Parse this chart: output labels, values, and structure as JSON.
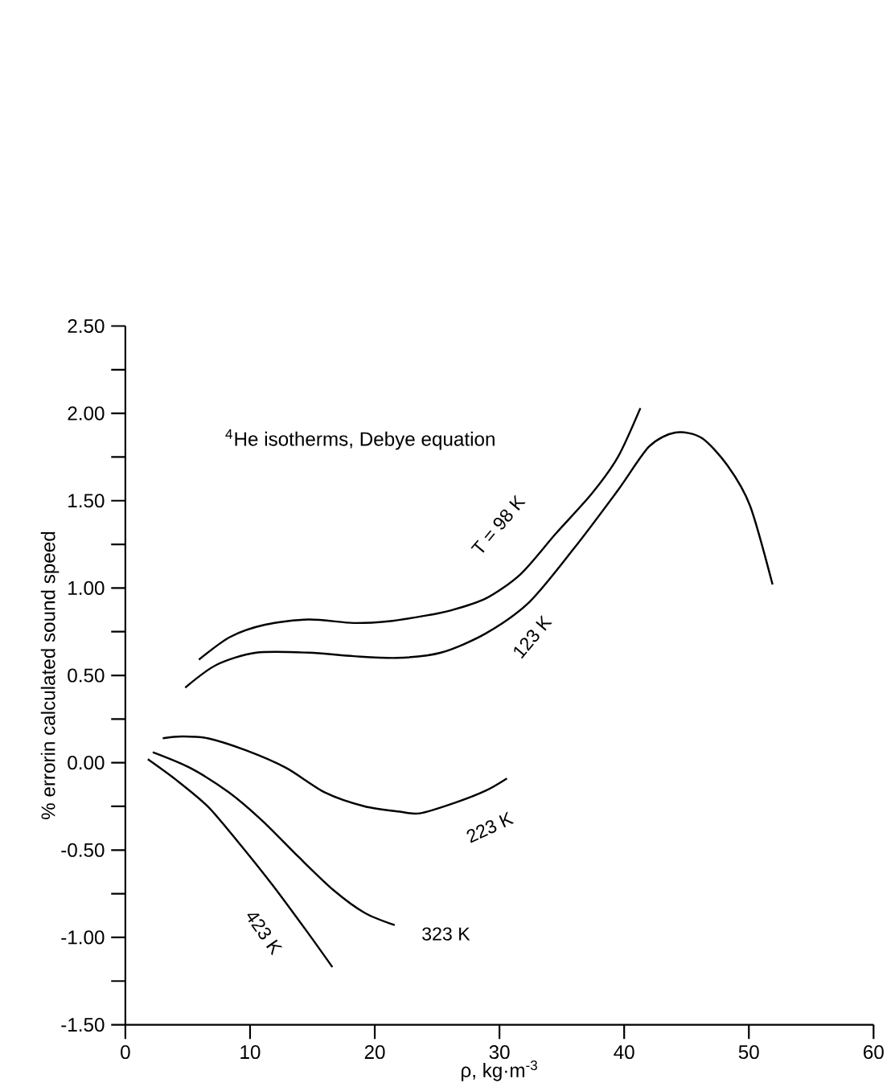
{
  "chart_data": {
    "type": "line",
    "title": "$^{4}$He isotherms, Debye equation",
    "xlabel": "ρ, kg·m$^{-3}$",
    "ylabel": "% errorin calculated sound speed",
    "xlim": [
      0,
      60
    ],
    "ylim": [
      -1.5,
      2.5
    ],
    "xticks": [
      0,
      10,
      20,
      30,
      40,
      50,
      60
    ],
    "yticks": [
      {
        "value": -1.5,
        "label": "-1.50"
      },
      {
        "value": -1.25,
        "label": null
      },
      {
        "value": -1.0,
        "label": "-1.00"
      },
      {
        "value": -0.75,
        "label": null
      },
      {
        "value": -0.5,
        "label": "-0.50"
      },
      {
        "value": -0.25,
        "label": null
      },
      {
        "value": 0,
        "label": "0.00"
      },
      {
        "value": 0.25,
        "label": null
      },
      {
        "value": 0.5,
        "label": "0.50"
      },
      {
        "value": 0.75,
        "label": null
      },
      {
        "value": 1.0,
        "label": "1.00"
      },
      {
        "value": 1.25,
        "label": null
      },
      {
        "value": 1.5,
        "label": "1.50"
      },
      {
        "value": 1.75,
        "label": null
      },
      {
        "value": 2.0,
        "label": "2.00"
      },
      {
        "value": 2.25,
        "label": null
      },
      {
        "value": 2.5,
        "label": "2.50"
      }
    ],
    "grid": false,
    "legend": false,
    "marker": "none",
    "line_style": "solid",
    "series": [
      {
        "name": "T = 98 K",
        "color": "#000000",
        "x": [
          5.9,
          8.4,
          11.2,
          14.7,
          18.3,
          21.1,
          23.9,
          26.0,
          28.9,
          31.7,
          34.5,
          37.4,
          39.5,
          41.3
        ],
        "values": [
          0.59,
          0.72,
          0.79,
          0.82,
          0.8,
          0.81,
          0.84,
          0.87,
          0.94,
          1.08,
          1.31,
          1.54,
          1.75,
          2.03
        ]
      },
      {
        "name": "123 K",
        "color": "#000000",
        "x": [
          4.8,
          7.3,
          10.5,
          14.7,
          18.3,
          21.8,
          25.3,
          28.9,
          32.4,
          35.9,
          39.5,
          42.0,
          44.1,
          46.2,
          48.3,
          50.1,
          51.9
        ],
        "values": [
          0.43,
          0.56,
          0.63,
          0.63,
          0.61,
          0.6,
          0.63,
          0.74,
          0.92,
          1.22,
          1.56,
          1.81,
          1.89,
          1.86,
          1.7,
          1.47,
          1.02
        ]
      },
      {
        "name": "223 K",
        "color": "#000000",
        "x": [
          3.0,
          4.5,
          6.6,
          9.7,
          12.9,
          16.0,
          19.2,
          22.0,
          23.6,
          26.4,
          28.9,
          30.6
        ],
        "values": [
          0.14,
          0.15,
          0.14,
          0.07,
          -0.03,
          -0.17,
          -0.25,
          -0.28,
          -0.29,
          -0.23,
          -0.16,
          -0.09
        ]
      },
      {
        "name": "323 K",
        "color": "#000000",
        "x": [
          2.2,
          5.2,
          8.3,
          11.1,
          13.9,
          16.7,
          19.2,
          21.6
        ],
        "values": [
          0.06,
          -0.03,
          -0.17,
          -0.34,
          -0.54,
          -0.73,
          -0.86,
          -0.93
        ]
      },
      {
        "name": "423 K",
        "color": "#000000",
        "x": [
          1.8,
          4.1,
          6.6,
          9.0,
          11.8,
          14.6,
          16.6
        ],
        "values": [
          0.02,
          -0.1,
          -0.25,
          -0.45,
          -0.7,
          -0.97,
          -1.17
        ]
      }
    ]
  }
}
